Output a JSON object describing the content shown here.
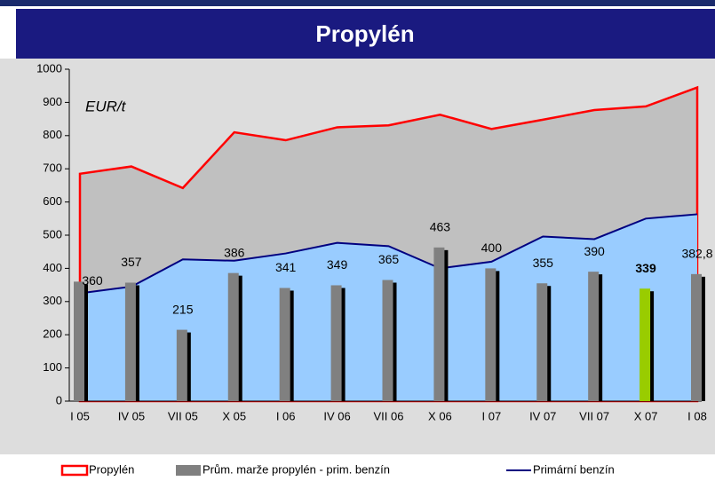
{
  "chart_data": {
    "type": "combo",
    "title": "Propylén",
    "annotation": "EUR/t",
    "categories": [
      "I 05",
      "IV 05",
      "VII 05",
      "X 05",
      "I 06",
      "IV 06",
      "VII 06",
      "X 06",
      "I 07",
      "IV 07",
      "VII 07",
      "X 07",
      "I 08"
    ],
    "series": [
      {
        "name": "Propylén",
        "type": "area",
        "color": "#ff0000",
        "fill": "#c0c0c0",
        "values": [
          685,
          707,
          642,
          810,
          786,
          825,
          831,
          863,
          820,
          848,
          877,
          888,
          945
        ]
      },
      {
        "name": "Prům. marže propylén - prim. benzín",
        "type": "bar",
        "color": "#808080",
        "colors": [
          "#808080",
          "#808080",
          "#808080",
          "#808080",
          "#808080",
          "#808080",
          "#808080",
          "#808080",
          "#808080",
          "#808080",
          "#808080",
          "#99cc00",
          "#808080"
        ],
        "values": [
          360,
          357,
          215,
          386,
          341,
          349,
          365,
          463,
          400,
          355,
          390,
          339,
          382.8
        ],
        "value_labels": [
          "360",
          "357",
          "215",
          "386",
          "341",
          "349",
          "365",
          "463",
          "400",
          "355",
          "390",
          "339",
          "382,8"
        ]
      },
      {
        "name": "Primární benzín",
        "type": "line",
        "color": "#000080",
        "fill": "#99ccff",
        "values": [
          325,
          345,
          427,
          423,
          445,
          477,
          467,
          400,
          420,
          496,
          488,
          550,
          563
        ]
      }
    ],
    "ylim": [
      0,
      1000
    ],
    "yticks": [
      0,
      100,
      200,
      300,
      400,
      500,
      600,
      700,
      800,
      900,
      1000
    ],
    "legend": "bottom"
  }
}
